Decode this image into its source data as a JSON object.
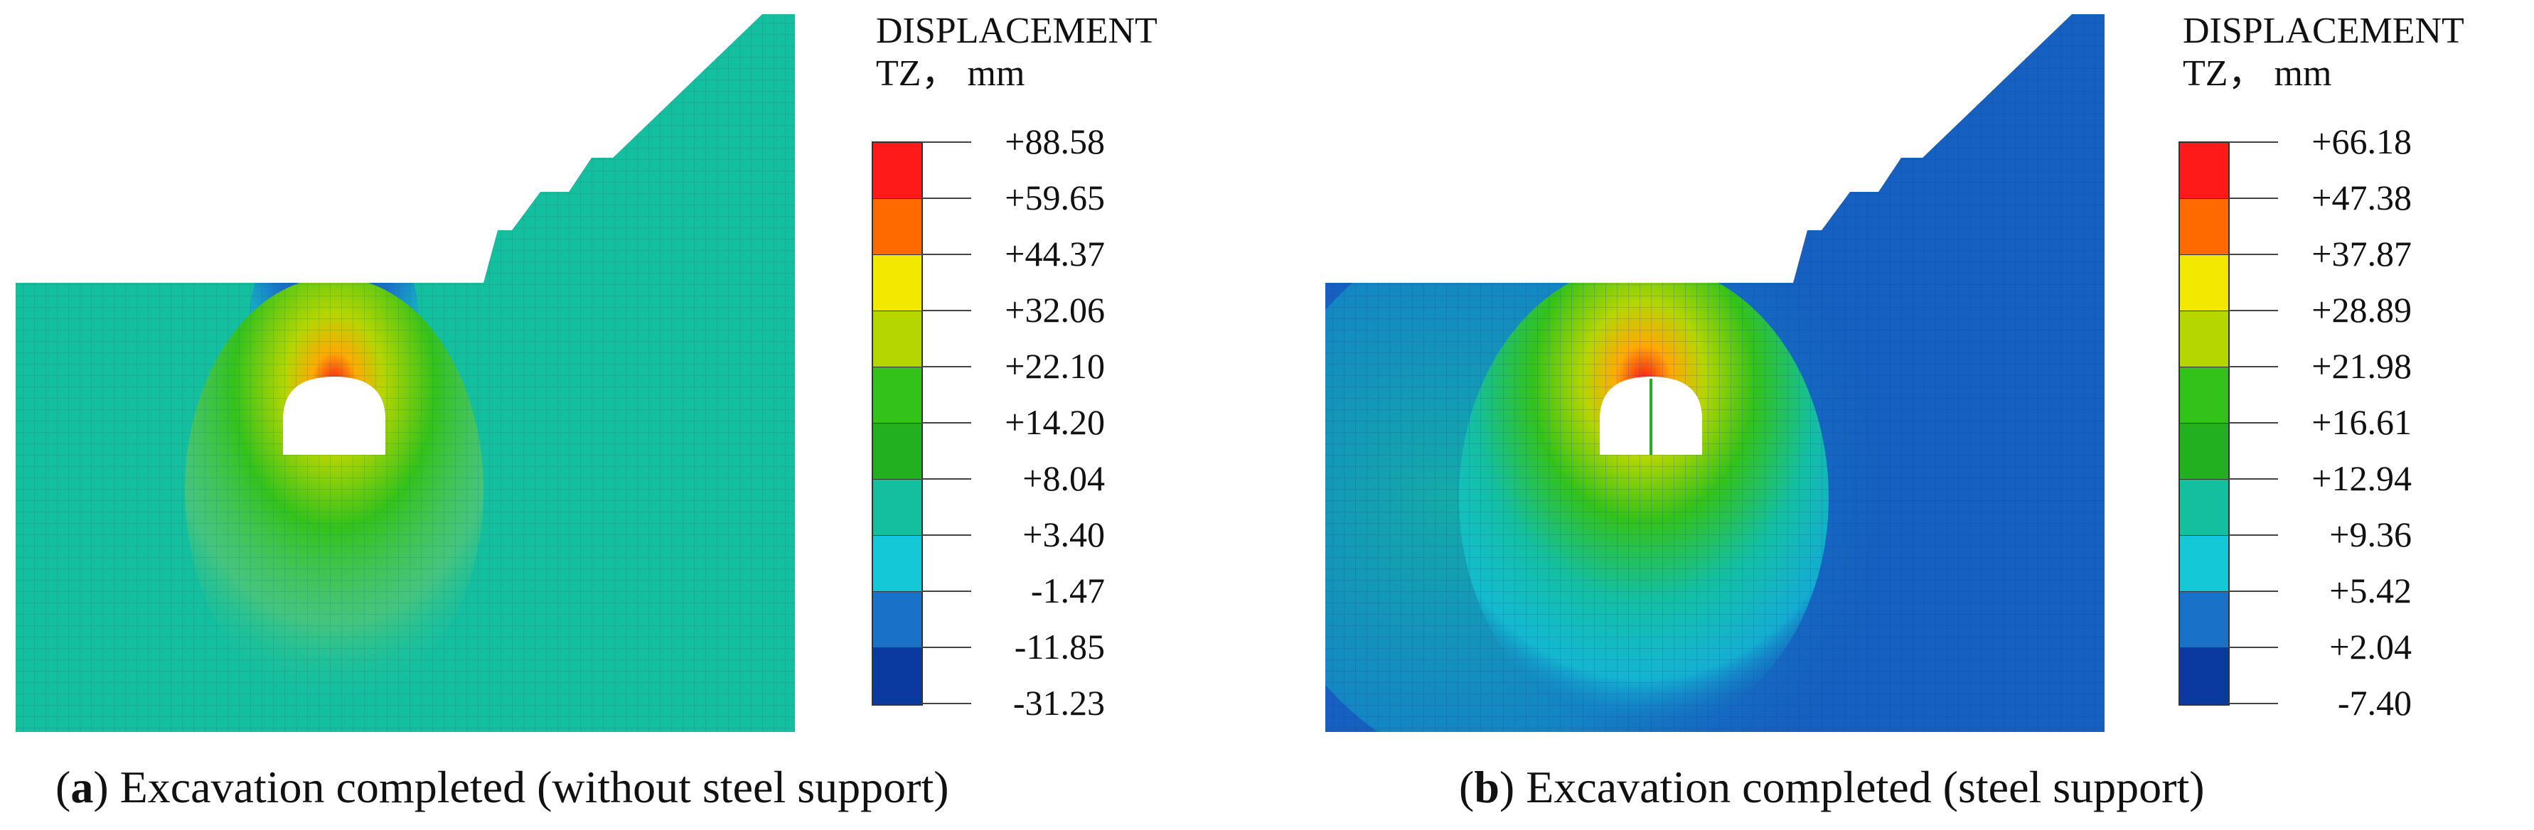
{
  "figure": {
    "panels": [
      {
        "id": "a",
        "legend_title_line1": "DISPLACEMENT",
        "legend_title_line2": "TZ， mm",
        "legend_values": [
          "+88.58",
          "+59.65",
          "+44.37",
          "+32.06",
          "+22.10",
          "+14.20",
          "+8.04",
          "+3.40",
          "-1.47",
          "-11.85",
          "-31.23"
        ],
        "caption_letter": "a",
        "caption_text": " Excavation completed (without steel support)"
      },
      {
        "id": "b",
        "legend_title_line1": "DISPLACEMENT",
        "legend_title_line2": "TZ， mm",
        "legend_values": [
          "+66.18",
          "+47.38",
          "+37.87",
          "+28.89",
          "+21.98",
          "+16.61",
          "+12.94",
          "+9.36",
          "+5.42",
          "+2.04",
          "-7.40"
        ],
        "caption_letter": "b",
        "caption_text": " Excavation completed (steel support)"
      }
    ],
    "legend_colors": [
      "#ff1a1a",
      "#ff6a00",
      "#ffaa00",
      "#f2e800",
      "#b5d600",
      "#33c21a",
      "#22b020",
      "#14bfa0",
      "#14c8d8",
      "#1a72c8",
      "#0a3aa0"
    ],
    "model_colors": {
      "background_a": "#14bfa0",
      "background_b": "#1560c0",
      "mesh_line": "#0c6a5c",
      "tunnel": "#ffffff"
    }
  }
}
